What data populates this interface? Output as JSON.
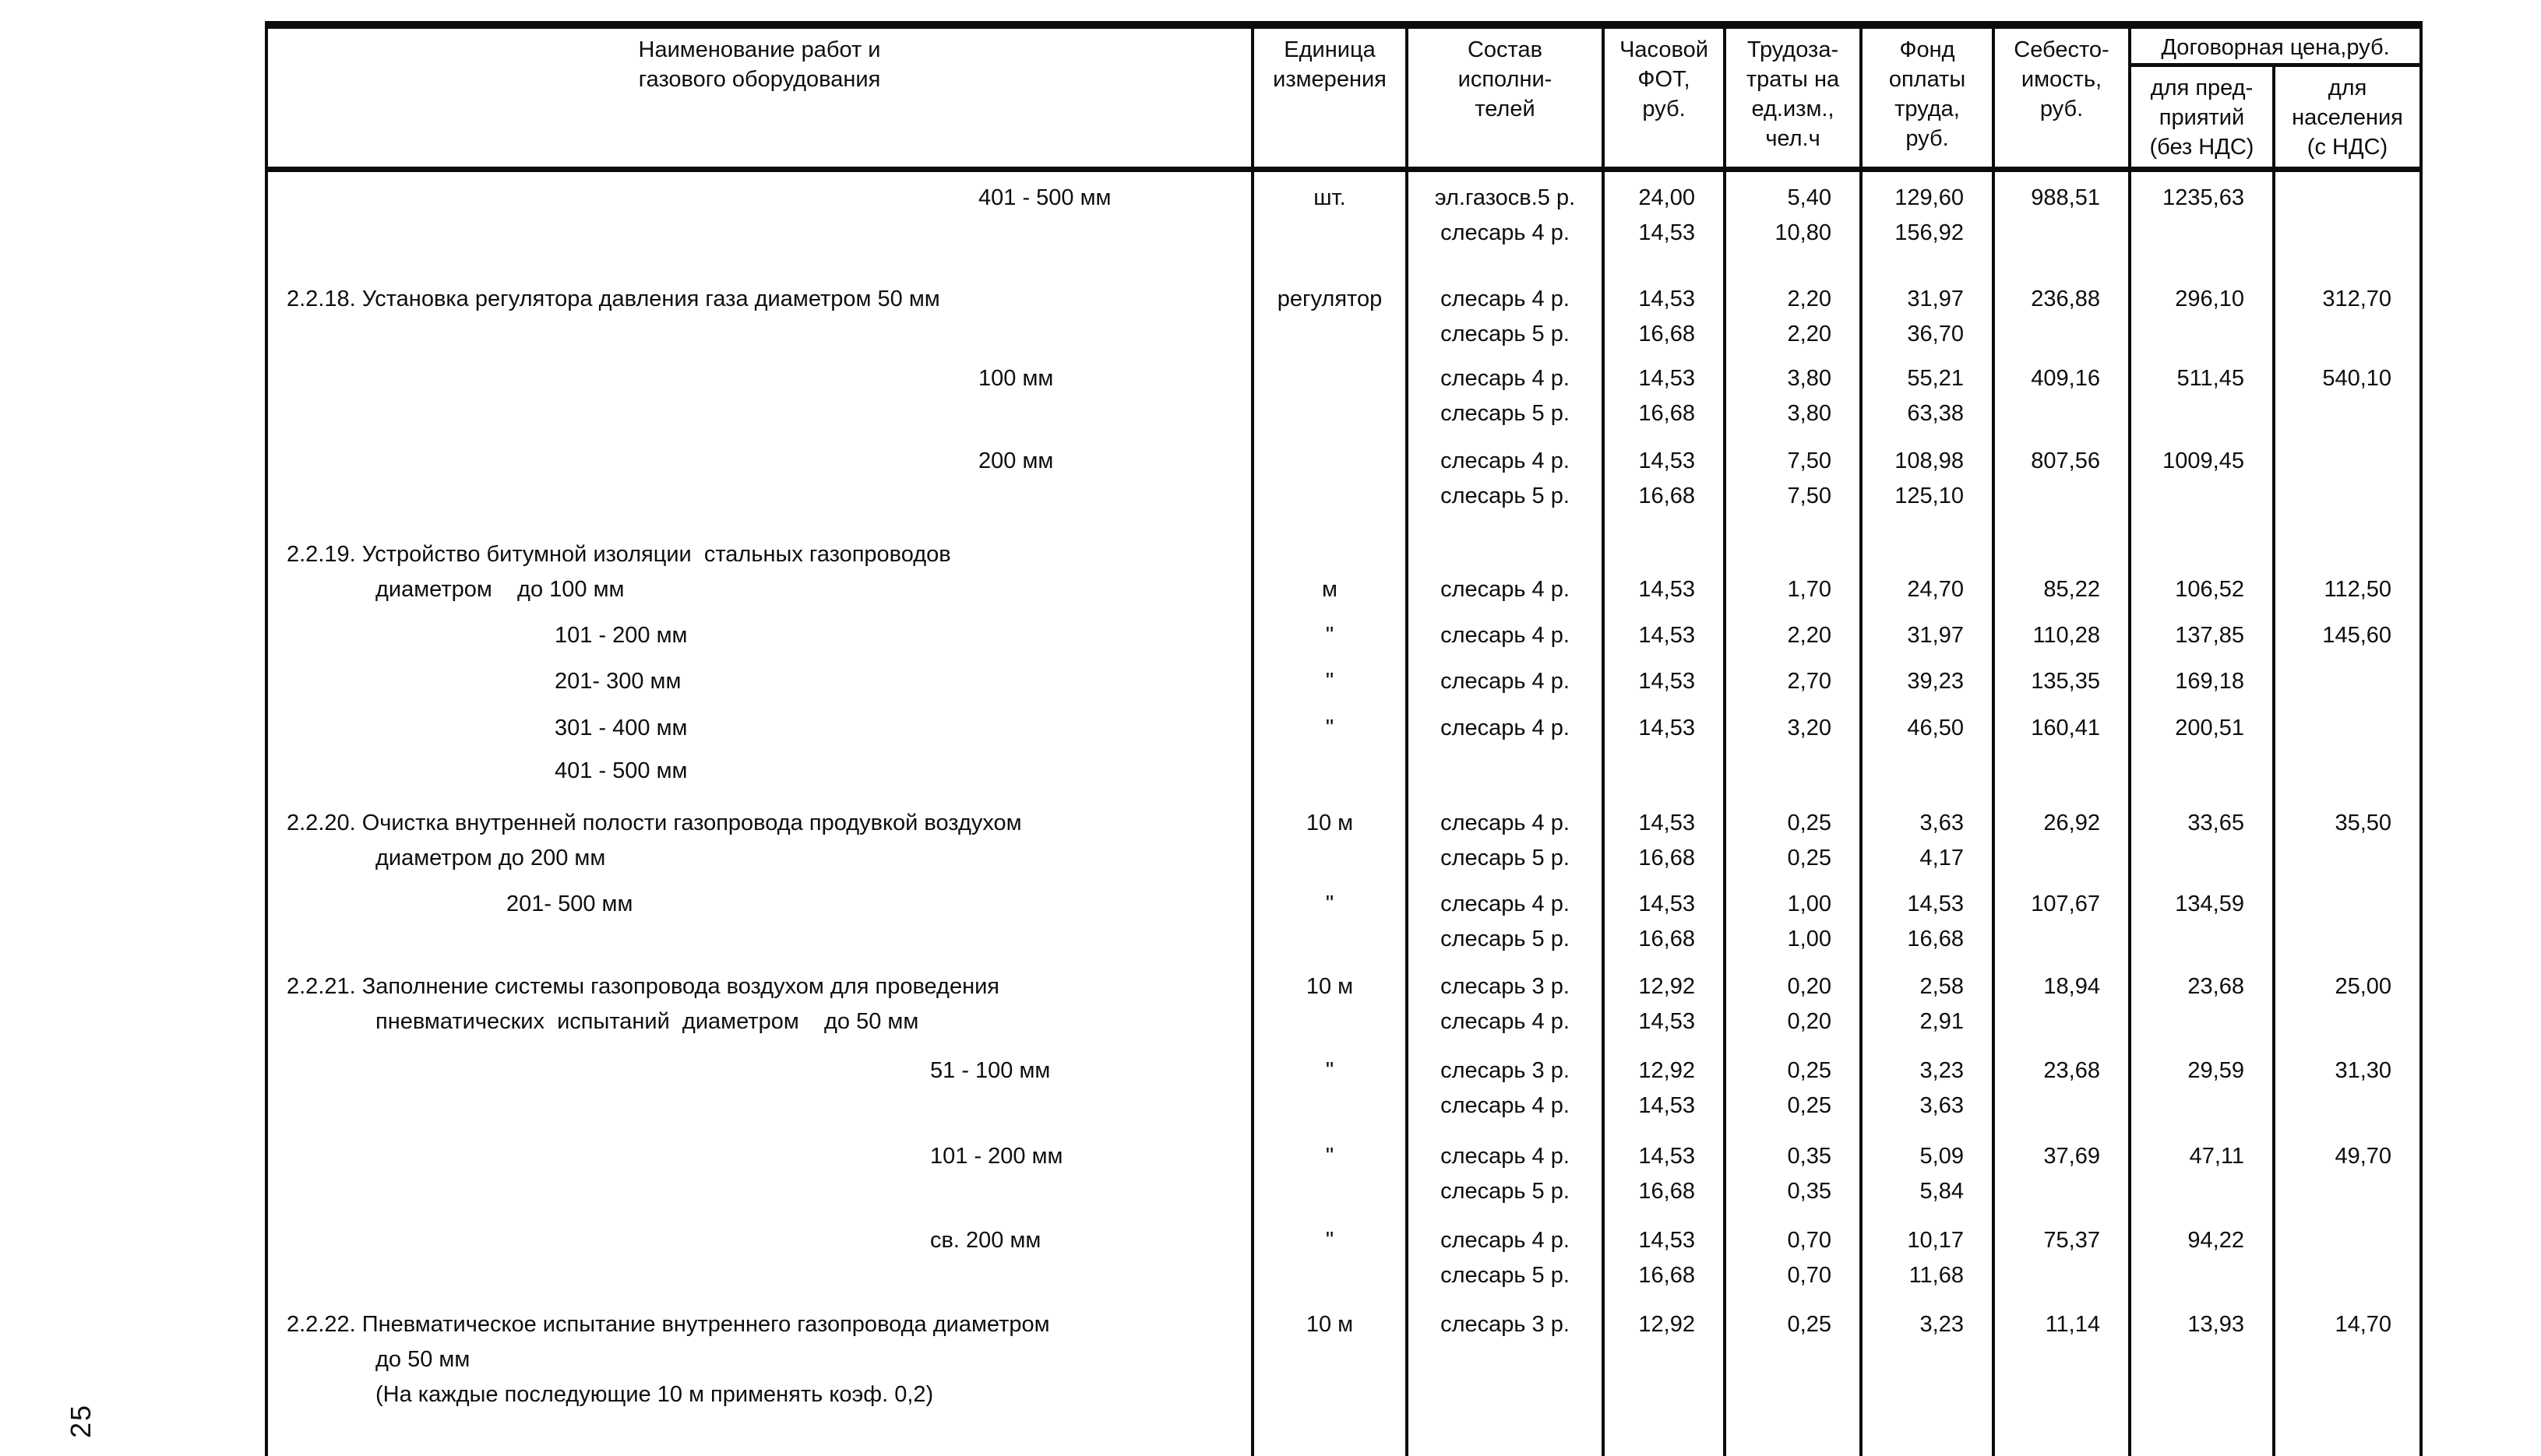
{
  "page": {
    "number": "25"
  },
  "colors": {
    "ink": "#0c0c0c",
    "paper": "#ffffff"
  },
  "table": {
    "header": {
      "name": "Наименование работ и\nгазового оборудования",
      "unit": "Единица\nизмерения",
      "crew": "Состав\nисполни-\nтелей",
      "fot": "Часовой\nФОТ,\nруб.",
      "labor": "Трудоза-\nтраты на\nед.изм.,\nчел.ч",
      "fund": "Фонд\nоплаты\nтруда,\nруб.",
      "cost": "Себесто-\nимость,\nруб.",
      "contract": "Договорная цена,руб.",
      "contract_enterprise": "для пред-\nприятий\n(без НДС)",
      "contract_population": "для\nнаселения\n(с НДС)"
    },
    "entries": [
      {
        "gap_before": 14,
        "lines": [
          {
            "name": "401 - 500 мм",
            "ind": "s4",
            "unit": "шт.",
            "crew": "эл.газосв.5 р.",
            "fot": "24,00",
            "labor": "5,40",
            "fund": "129,60",
            "cost": "988,51",
            "ent": "1235,63",
            "pop": ""
          },
          {
            "name": "",
            "unit": "",
            "crew": "слесарь 4 р.",
            "fot": "14,53",
            "labor": "10,80",
            "fund": "156,92",
            "cost": "",
            "ent": "",
            "pop": ""
          }
        ]
      },
      {
        "gap_before": 40,
        "lines": [
          {
            "name": "2.2.18. Установка регулятора давления газа диаметром 50 мм",
            "ind": "num",
            "unit": "регулятор",
            "crew": "слесарь 4 р.",
            "fot": "14,53",
            "labor": "2,20",
            "fund": "31,97",
            "cost": "236,88",
            "ent": "296,10",
            "pop": "312,70"
          },
          {
            "name": "",
            "unit": "",
            "crew": "слесарь 5 р.",
            "fot": "16,68",
            "labor": "2,20",
            "fund": "36,70",
            "cost": "",
            "ent": "",
            "pop": ""
          }
        ]
      },
      {
        "gap_before": 12,
        "lines": [
          {
            "name": "100 мм",
            "ind": "s4",
            "unit": "",
            "crew": "слесарь 4 р.",
            "fot": "14,53",
            "labor": "3,80",
            "fund": "55,21",
            "cost": "409,16",
            "ent": "511,45",
            "pop": "540,10"
          },
          {
            "name": "",
            "unit": "",
            "crew": "слесарь 5 р.",
            "fot": "16,68",
            "labor": "3,80",
            "fund": "63,38",
            "cost": "",
            "ent": "",
            "pop": ""
          }
        ]
      },
      {
        "gap_before": 16,
        "lines": [
          {
            "name": "200 мм",
            "ind": "s4",
            "unit": "",
            "crew": "слесарь 4 р.",
            "fot": "14,53",
            "labor": "7,50",
            "fund": "108,98",
            "cost": "807,56",
            "ent": "1009,45",
            "pop": ""
          },
          {
            "name": "",
            "unit": "",
            "crew": "слесарь 5 р.",
            "fot": "16,68",
            "labor": "7,50",
            "fund": "125,10",
            "cost": "",
            "ent": "",
            "pop": ""
          }
        ]
      },
      {
        "gap_before": 30,
        "lines": [
          {
            "name": "2.2.19. Устройство битумной изоляции  стальных газопроводов",
            "ind": "num",
            "unit": "",
            "crew": "",
            "fot": "",
            "labor": "",
            "fund": "",
            "cost": "",
            "ent": "",
            "pop": ""
          },
          {
            "name": "диаметром    до 100 мм",
            "ind": "wrap",
            "unit": "м",
            "crew": "слесарь 4 р.",
            "fot": "14,53",
            "labor": "1,70",
            "fund": "24,70",
            "cost": "85,22",
            "ent": "106,52",
            "pop": "112,50"
          }
        ]
      },
      {
        "gap_before": 14,
        "lines": [
          {
            "name": "101 - 200 мм",
            "ind": "s2",
            "unit": "\"",
            "crew": "слесарь 4 р.",
            "fot": "14,53",
            "labor": "2,20",
            "fund": "31,97",
            "cost": "110,28",
            "ent": "137,85",
            "pop": "145,60"
          }
        ]
      },
      {
        "gap_before": 14,
        "lines": [
          {
            "name": "201- 300 мм",
            "ind": "s2",
            "unit": "\"",
            "crew": "слесарь 4 р.",
            "fot": "14,53",
            "labor": "2,70",
            "fund": "39,23",
            "cost": "135,35",
            "ent": "169,18",
            "pop": ""
          }
        ]
      },
      {
        "gap_before": 15,
        "lines": [
          {
            "name": "301 - 400 мм",
            "ind": "s2",
            "unit": "\"",
            "crew": "слесарь 4 р.",
            "fot": "14,53",
            "labor": "3,20",
            "fund": "46,50",
            "cost": "160,41",
            "ent": "200,51",
            "pop": ""
          }
        ]
      },
      {
        "gap_before": 10,
        "lines": [
          {
            "name": "401 - 500 мм",
            "ind": "s2",
            "unit": "",
            "crew": "",
            "fot": "",
            "labor": "",
            "fund": "",
            "cost": "",
            "ent": "",
            "pop": ""
          }
        ]
      },
      {
        "gap_before": 22,
        "lines": [
          {
            "name": "2.2.20. Очистка внутренней полости газопровода продувкой воздухом",
            "ind": "num",
            "unit": "10 м",
            "crew": "слесарь 4 р.",
            "fot": "14,53",
            "labor": "0,25",
            "fund": "3,63",
            "cost": "26,92",
            "ent": "33,65",
            "pop": "35,50"
          },
          {
            "name": "диаметром до 200 мм",
            "ind": "wrap",
            "unit": "",
            "crew": "слесарь 5 р.",
            "fot": "16,68",
            "labor": "0,25",
            "fund": "4,17",
            "cost": "",
            "ent": "",
            "pop": ""
          }
        ]
      },
      {
        "gap_before": 14,
        "lines": [
          {
            "name": "201- 500 мм",
            "ind": "s1",
            "unit": "\"",
            "crew": "слесарь 4 р.",
            "fot": "14,53",
            "labor": "1,00",
            "fund": "14,53",
            "cost": "107,67",
            "ent": "134,59",
            "pop": ""
          },
          {
            "name": "",
            "unit": "",
            "crew": "слесарь 5 р.",
            "fot": "16,68",
            "labor": "1,00",
            "fund": "16,68",
            "cost": "",
            "ent": "",
            "pop": ""
          }
        ]
      },
      {
        "gap_before": 16,
        "lines": [
          {
            "name": "2.2.21. Заполнение системы газопровода воздухом для проведения",
            "ind": "num",
            "unit": "10 м",
            "crew": "слесарь 3 р.",
            "fot": "12,92",
            "labor": "0,20",
            "fund": "2,58",
            "cost": "18,94",
            "ent": "23,68",
            "pop": "25,00"
          },
          {
            "name": "пневматических  испытаний  диаметром    до 50 мм",
            "ind": "wrap",
            "unit": "",
            "crew": "слесарь 4 р.",
            "fot": "14,53",
            "labor": "0,20",
            "fund": "2,91",
            "cost": "",
            "ent": "",
            "pop": ""
          }
        ]
      },
      {
        "gap_before": 18,
        "lines": [
          {
            "name": "51 - 100 мм",
            "ind": "s3",
            "unit": "\"",
            "crew": "слесарь 3 р.",
            "fot": "12,92",
            "labor": "0,25",
            "fund": "3,23",
            "cost": "23,68",
            "ent": "29,59",
            "pop": "31,30"
          },
          {
            "name": "",
            "unit": "",
            "crew": "слесарь 4 р.",
            "fot": "14,53",
            "labor": "0,25",
            "fund": "3,63",
            "cost": "",
            "ent": "",
            "pop": ""
          }
        ]
      },
      {
        "gap_before": 20,
        "lines": [
          {
            "name": "101 - 200 мм",
            "ind": "s3",
            "unit": "\"",
            "crew": "слесарь 4 р.",
            "fot": "14,53",
            "labor": "0,35",
            "fund": "5,09",
            "cost": "37,69",
            "ent": "47,11",
            "pop": "49,70"
          },
          {
            "name": "",
            "unit": "",
            "crew": "слесарь 5 р.",
            "fot": "16,68",
            "labor": "0,35",
            "fund": "5,84",
            "cost": "",
            "ent": "",
            "pop": ""
          }
        ]
      },
      {
        "gap_before": 18,
        "lines": [
          {
            "name": "св. 200 мм",
            "ind": "s3",
            "unit": "\"",
            "crew": "слесарь 4 р.",
            "fot": "14,53",
            "labor": "0,70",
            "fund": "10,17",
            "cost": "75,37",
            "ent": "94,22",
            "pop": ""
          },
          {
            "name": "",
            "unit": "",
            "crew": "слесарь 5 р.",
            "fot": "16,68",
            "labor": "0,70",
            "fund": "11,68",
            "cost": "",
            "ent": "",
            "pop": ""
          }
        ]
      },
      {
        "gap_before": 18,
        "lines": [
          {
            "name": "2.2.22. Пневматическое испытание внутреннего газопровода диаметром",
            "ind": "num",
            "unit": "10 м",
            "crew": "слесарь 3 р.",
            "fot": "12,92",
            "labor": "0,25",
            "fund": "3,23",
            "cost": "11,14",
            "ent": "13,93",
            "pop": "14,70"
          },
          {
            "name": "до 50 мм",
            "ind": "wrap",
            "unit": "",
            "crew": "",
            "fot": "",
            "labor": "",
            "fund": "",
            "cost": "",
            "ent": "",
            "pop": ""
          },
          {
            "name": "(На каждые последующие 10 м применять коэф. 0,2)",
            "ind": "wrap",
            "unit": "",
            "crew": "",
            "fot": "",
            "labor": "",
            "fund": "",
            "cost": "",
            "ent": "",
            "pop": ""
          }
        ]
      },
      {
        "gap_before": 0,
        "lines": []
      }
    ]
  }
}
